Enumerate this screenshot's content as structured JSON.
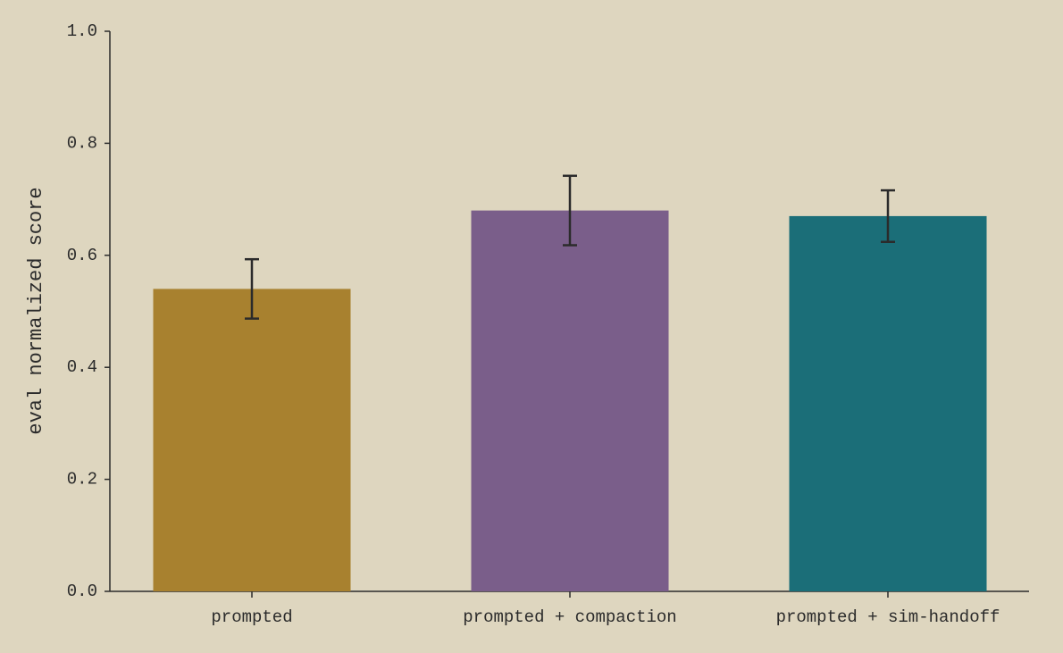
{
  "chart_data": {
    "type": "bar",
    "y_label": "eval normalized score",
    "categories": [
      "prompted",
      "prompted + compaction",
      "prompted + sim-handoff"
    ],
    "values": [
      0.54,
      0.68,
      0.67
    ],
    "errors": [
      0.053,
      0.062,
      0.046
    ],
    "colors": [
      "#a8812f",
      "#7a5e8a",
      "#1b6e78"
    ],
    "ylim": [
      0,
      1
    ],
    "yticks": [
      {
        "value": 0,
        "label": "0.0"
      },
      0.2,
      0.4,
      0.6,
      0.8,
      {
        "value": 1,
        "label": "1.0"
      }
    ]
  }
}
